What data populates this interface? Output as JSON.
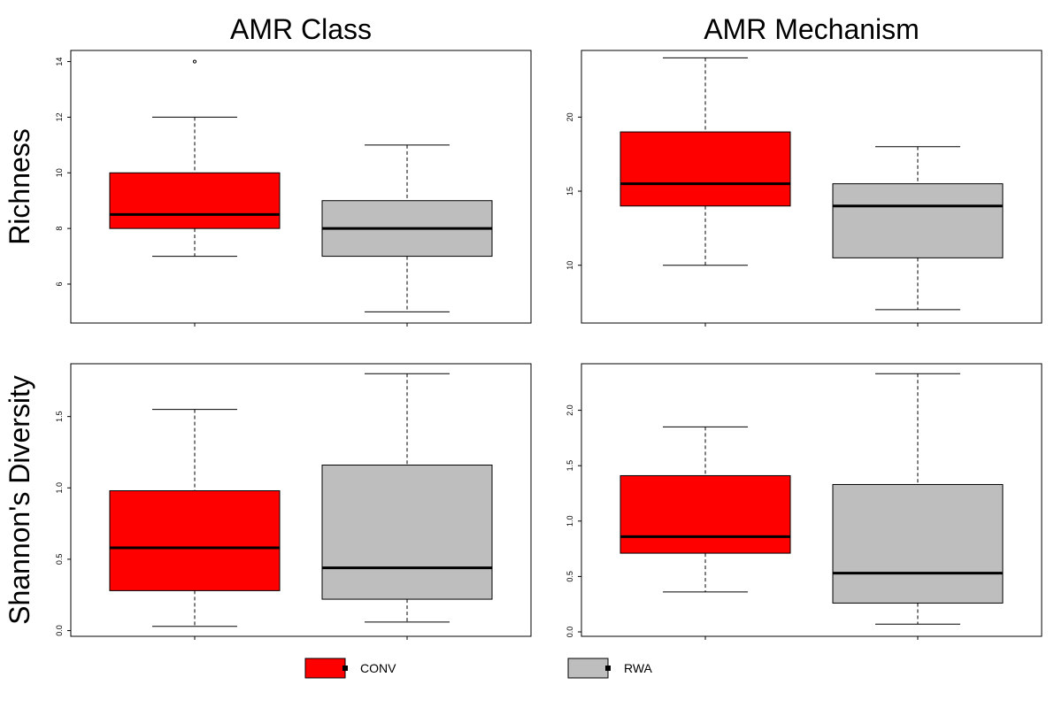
{
  "colors": {
    "CONV": "#ff0000",
    "RWA": "#bebebe"
  },
  "legend": {
    "items": [
      {
        "key": "CONV",
        "label": "CONV"
      },
      {
        "key": "RWA",
        "label": "RWA"
      }
    ]
  },
  "chart_data": [
    {
      "type": "box",
      "column_title": "AMR Class",
      "row_label": "Richness",
      "ylim": [
        4.6,
        14.4
      ],
      "yticks": [
        6,
        8,
        10,
        12,
        14
      ],
      "groups": [
        {
          "name": "CONV",
          "min": 7,
          "q1": 8,
          "median": 8.5,
          "q3": 10,
          "max": 12,
          "outliers": [
            14
          ]
        },
        {
          "name": "RWA",
          "min": 5,
          "q1": 7,
          "median": 8,
          "q3": 9,
          "max": 11,
          "outliers": []
        }
      ]
    },
    {
      "type": "box",
      "column_title": "AMR Mechanism",
      "row_label": "Richness",
      "ylim": [
        6.1,
        24.5
      ],
      "yticks": [
        10,
        15,
        20
      ],
      "groups": [
        {
          "name": "CONV",
          "min": 10,
          "q1": 14,
          "median": 15.5,
          "q3": 19,
          "max": 24,
          "outliers": []
        },
        {
          "name": "RWA",
          "min": 7,
          "q1": 10.5,
          "median": 14,
          "q3": 15.5,
          "max": 18,
          "outliers": []
        }
      ]
    },
    {
      "type": "box",
      "column_title": "AMR Class",
      "row_label": "Shannon's Diversity",
      "ylim": [
        -0.04,
        1.87
      ],
      "yticks": [
        0.0,
        0.5,
        1.0,
        1.5
      ],
      "groups": [
        {
          "name": "CONV",
          "min": 0.03,
          "q1": 0.28,
          "median": 0.58,
          "q3": 0.98,
          "max": 1.55,
          "outliers": []
        },
        {
          "name": "RWA",
          "min": 0.06,
          "q1": 0.22,
          "median": 0.44,
          "q3": 1.16,
          "max": 1.8,
          "outliers": []
        }
      ]
    },
    {
      "type": "box",
      "column_title": "AMR Mechanism",
      "row_label": "Shannon's Diversity",
      "ylim": [
        -0.04,
        2.42
      ],
      "yticks": [
        0.0,
        0.5,
        1.0,
        1.5,
        2.0
      ],
      "groups": [
        {
          "name": "CONV",
          "min": 0.36,
          "q1": 0.71,
          "median": 0.86,
          "q3": 1.41,
          "max": 1.85,
          "outliers": []
        },
        {
          "name": "RWA",
          "min": 0.07,
          "q1": 0.26,
          "median": 0.53,
          "q3": 1.33,
          "max": 2.33,
          "outliers": []
        }
      ]
    }
  ]
}
